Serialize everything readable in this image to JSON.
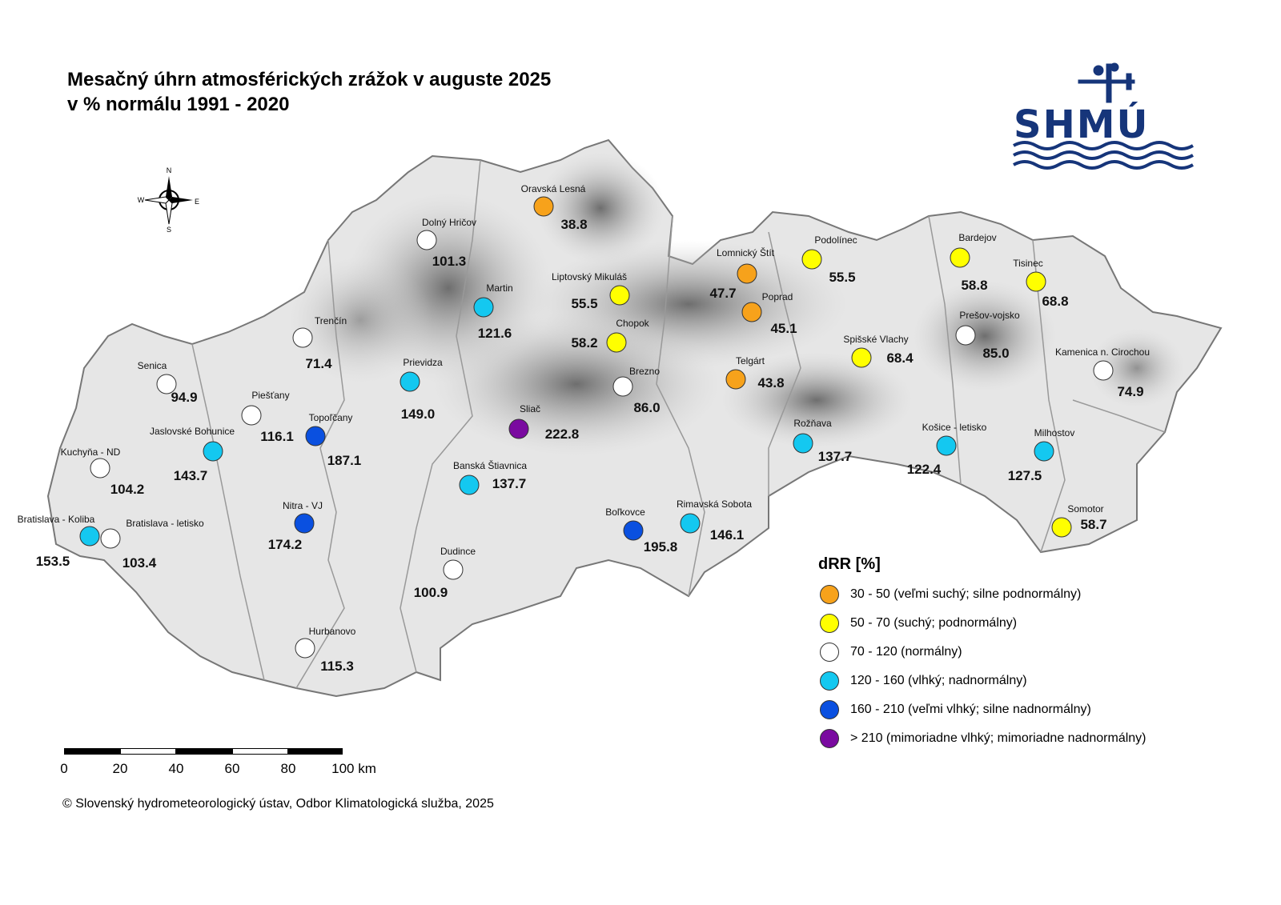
{
  "title": {
    "line1": "Mesačný úhrn atmosférických zrážok v auguste 2025",
    "line2": "v % normálu 1991 - 2020"
  },
  "logo": {
    "text": "SHMÚ",
    "color": "#16357a"
  },
  "compass": {
    "n": "N",
    "s": "S",
    "e": "E",
    "w": "W"
  },
  "legend": {
    "title": "dRR [%]",
    "items": [
      {
        "label": "30 - 50 (veľmi suchý; silne podnormálny)",
        "color": "#f7a21b"
      },
      {
        "label": "50 - 70 (suchý; podnormálny)",
        "color": "#ffff00"
      },
      {
        "label": "70 - 120 (normálny)",
        "color": "#ffffff"
      },
      {
        "label": "120 - 160 (vlhký; nadnormálny)",
        "color": "#14c8f0"
      },
      {
        "label": "160 - 210 (veľmi vlhký; silne nadnormálny)",
        "color": "#0a50e0"
      },
      {
        "label": "> 210 (mimoriadne vlhký; mimoriadne nadnormálny)",
        "color": "#7a0aa0"
      }
    ]
  },
  "scalebar": {
    "labels": [
      "0",
      "20",
      "40",
      "60",
      "80",
      "100 km"
    ]
  },
  "copyright": "© Slovenský hydrometeorologický ústav, Odbor Klimatologická služba, 2025",
  "stations": [
    {
      "name": "Oravská Lesná",
      "value": "38.8",
      "class": 0
    },
    {
      "name": "Dolný Hričov",
      "value": "101.3",
      "class": 2
    },
    {
      "name": "Lomnický Štít",
      "value": "47.7",
      "class": 0
    },
    {
      "name": "Podolínec",
      "value": "55.5",
      "class": 1
    },
    {
      "name": "Bardejov",
      "value": "58.8",
      "class": 1
    },
    {
      "name": "Tisinec",
      "value": "68.8",
      "class": 1
    },
    {
      "name": "Liptovský Mikuláš",
      "value": "55.5",
      "class": 1
    },
    {
      "name": "Poprad",
      "value": "45.1",
      "class": 0
    },
    {
      "name": "Martin",
      "value": "121.6",
      "class": 3
    },
    {
      "name": "Chopok",
      "value": "58.2",
      "class": 1
    },
    {
      "name": "Prešov-vojsko",
      "value": "85.0",
      "class": 2
    },
    {
      "name": "Trenčín",
      "value": "71.4",
      "class": 2
    },
    {
      "name": "Spišské Vlachy",
      "value": "68.4",
      "class": 1
    },
    {
      "name": "Kamenica n. Cirochou",
      "value": "74.9",
      "class": 2
    },
    {
      "name": "Senica",
      "value": "94.9",
      "class": 2
    },
    {
      "name": "Prievidza",
      "value": "149.0",
      "class": 3
    },
    {
      "name": "Telgárt",
      "value": "43.8",
      "class": 0
    },
    {
      "name": "Brezno",
      "value": "86.0",
      "class": 2
    },
    {
      "name": "Piešťany",
      "value": "116.1",
      "class": 2
    },
    {
      "name": "Sliač",
      "value": "222.8",
      "class": 5
    },
    {
      "name": "Topoľčany",
      "value": "187.1",
      "class": 4
    },
    {
      "name": "Rožňava",
      "value": "137.7",
      "class": 3
    },
    {
      "name": "Košice - letisko",
      "value": "122.4",
      "class": 3
    },
    {
      "name": "Milhostov",
      "value": "127.5",
      "class": 3
    },
    {
      "name": "Jaslovské Bohunice",
      "value": "143.7",
      "class": 3
    },
    {
      "name": "Kuchyňa - ND",
      "value": "104.2",
      "class": 2
    },
    {
      "name": "Banská Štiavnica",
      "value": "137.7",
      "class": 3
    },
    {
      "name": "Nitra - VJ",
      "value": "174.2",
      "class": 4
    },
    {
      "name": "Boľkovce",
      "value": "195.8",
      "class": 4
    },
    {
      "name": "Rimavská Sobota",
      "value": "146.1",
      "class": 3
    },
    {
      "name": "Somotor",
      "value": "58.7",
      "class": 1
    },
    {
      "name": "Bratislava - Koliba",
      "value": "153.5",
      "class": 3
    },
    {
      "name": "Bratislava - letisko",
      "value": "103.4",
      "class": 2
    },
    {
      "name": "Dudince",
      "value": "100.9",
      "class": 2
    },
    {
      "name": "Hurbanovo",
      "value": "115.3",
      "class": 2
    }
  ]
}
